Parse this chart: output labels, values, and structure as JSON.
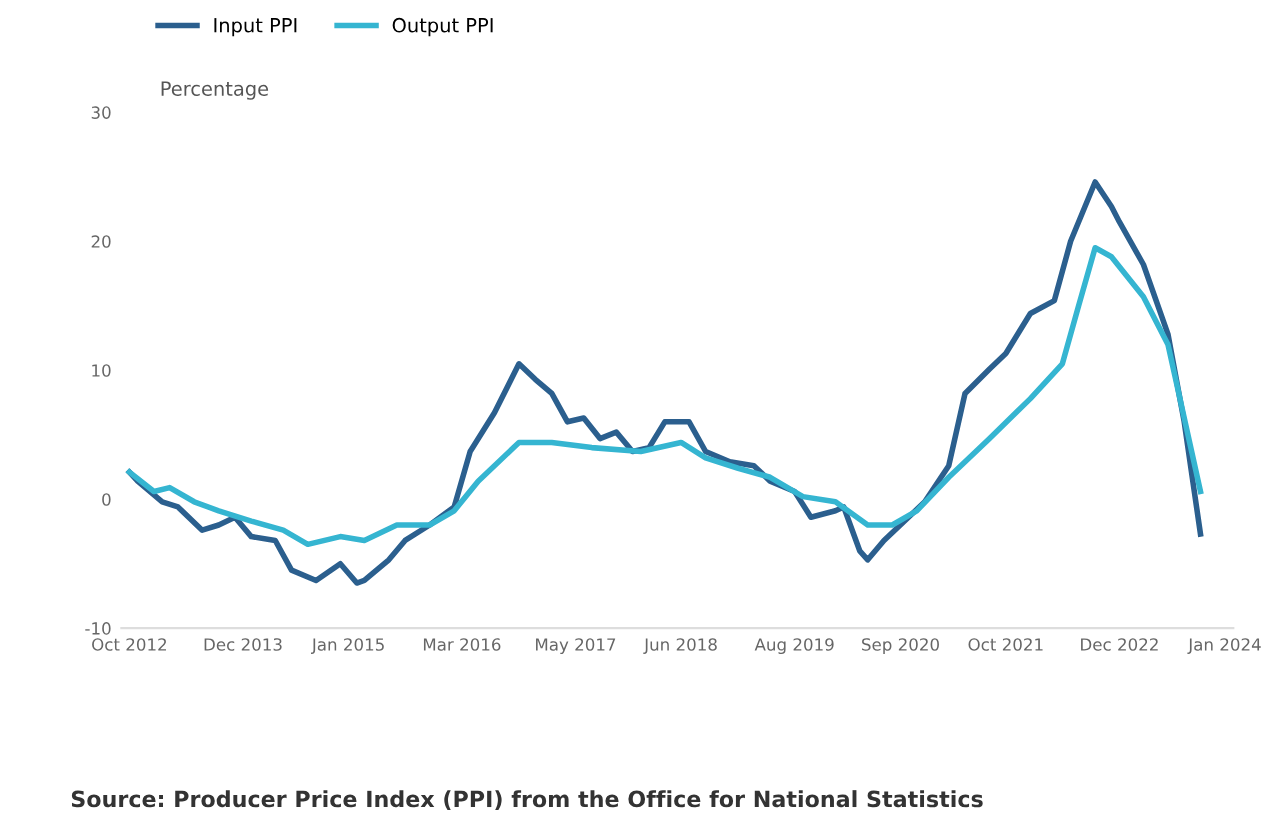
{
  "chart_data": {
    "type": "line",
    "subtitle": "Percentage",
    "series": [
      {
        "name": "Input PPI",
        "color": "#2b5f8e",
        "x": [
          "2012-10",
          "2012-11",
          "2013-02",
          "2013-04",
          "2013-07",
          "2013-09",
          "2013-11",
          "2014-01",
          "2014-04",
          "2014-06",
          "2014-09",
          "2014-12",
          "2015-02",
          "2015-03",
          "2015-06",
          "2015-08",
          "2015-11",
          "2016-02",
          "2016-04",
          "2016-07",
          "2016-10",
          "2016-12",
          "2017-02",
          "2017-04",
          "2017-06",
          "2017-08",
          "2017-10",
          "2017-12",
          "2018-02",
          "2018-04",
          "2018-07",
          "2018-09",
          "2018-12",
          "2019-03",
          "2019-05",
          "2019-08",
          "2019-10",
          "2020-01",
          "2020-02",
          "2020-04",
          "2020-05",
          "2020-07",
          "2020-10",
          "2020-12",
          "2021-03",
          "2021-05",
          "2021-08",
          "2021-10",
          "2022-01",
          "2022-04",
          "2022-06",
          "2022-09",
          "2022-11",
          "2022-12",
          "2023-03",
          "2023-06",
          "2023-08",
          "2023-10"
        ],
        "values": [
          2.1,
          1.4,
          -0.2,
          -0.6,
          -2.4,
          -2.0,
          -1.4,
          -2.9,
          -3.2,
          -5.5,
          -6.3,
          -5.0,
          -6.5,
          -6.3,
          -4.7,
          -3.2,
          -2.0,
          -0.6,
          3.7,
          6.7,
          10.5,
          9.3,
          8.2,
          6.0,
          6.3,
          4.7,
          5.2,
          3.7,
          4.0,
          6.0,
          6.0,
          3.7,
          2.9,
          2.6,
          1.4,
          0.6,
          -1.4,
          -0.9,
          -0.6,
          -4.0,
          -4.7,
          -3.2,
          -1.4,
          -0.2,
          2.6,
          8.2,
          10.1,
          11.3,
          14.4,
          15.4,
          20.0,
          24.6,
          22.7,
          21.5,
          18.2,
          12.8,
          6.0,
          -2.7
        ]
      },
      {
        "name": "Output PPI",
        "color": "#35b5d1",
        "x": [
          "2012-10",
          "2013-01",
          "2013-03",
          "2013-06",
          "2013-09",
          "2014-01",
          "2014-05",
          "2014-08",
          "2014-12",
          "2015-03",
          "2015-07",
          "2015-11",
          "2016-02",
          "2016-05",
          "2016-10",
          "2017-02",
          "2017-07",
          "2018-01",
          "2018-06",
          "2018-09",
          "2019-01",
          "2019-05",
          "2019-09",
          "2020-01",
          "2020-05",
          "2020-08",
          "2020-11",
          "2021-03",
          "2021-08",
          "2022-01",
          "2022-05",
          "2022-07",
          "2022-09",
          "2022-11",
          "2023-03",
          "2023-06",
          "2023-10"
        ],
        "values": [
          2.1,
          0.6,
          0.9,
          -0.2,
          -0.9,
          -1.7,
          -2.4,
          -3.5,
          -2.9,
          -3.2,
          -2.0,
          -2.0,
          -0.9,
          1.4,
          4.4,
          4.4,
          4.0,
          3.7,
          4.4,
          3.2,
          2.4,
          1.7,
          0.2,
          -0.2,
          -2.0,
          -2.0,
          -0.9,
          1.7,
          4.7,
          7.8,
          10.5,
          15.0,
          19.5,
          18.8,
          15.7,
          12.0,
          0.6
        ]
      }
    ],
    "xlim": [
      "2012-09",
      "2024-02"
    ],
    "xticks": [
      {
        "value": "2012-10",
        "label": "Oct 2012"
      },
      {
        "value": "2013-12",
        "label": "Dec 2013"
      },
      {
        "value": "2015-01",
        "label": "Jan 2015"
      },
      {
        "value": "2016-03",
        "label": "Mar 2016"
      },
      {
        "value": "2017-05",
        "label": "May 2017"
      },
      {
        "value": "2018-06",
        "label": "Jun 2018"
      },
      {
        "value": "2019-08",
        "label": "Aug 2019"
      },
      {
        "value": "2020-09",
        "label": "Sep 2020"
      },
      {
        "value": "2021-10",
        "label": "Oct 2021"
      },
      {
        "value": "2022-12",
        "label": "Dec 2022"
      },
      {
        "value": "2024-01",
        "label": "Jan 2024"
      }
    ],
    "ylim": [
      -10,
      30
    ],
    "yticks": [
      -10,
      0,
      10,
      20,
      30
    ],
    "grid": false,
    "legend": "top left",
    "marker": "none",
    "line_style": "solid",
    "annotations": [
      "Source: Producer Price Index (PPI) from the Office for National Statistics"
    ]
  }
}
